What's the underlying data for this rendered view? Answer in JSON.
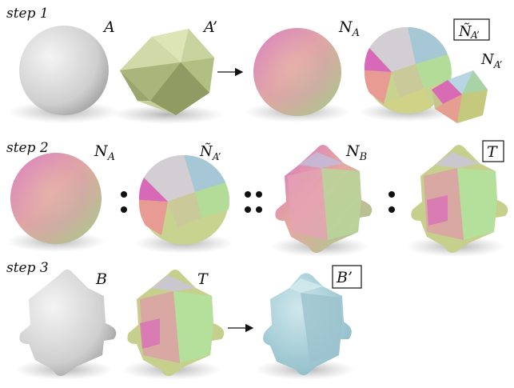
{
  "steps": [
    {
      "label": "step 1"
    },
    {
      "label": "step 2"
    },
    {
      "label": "step 3"
    }
  ],
  "labels": {
    "A": "A",
    "A_prime": "A’",
    "N_A": "N",
    "N_A_sub": "A",
    "N_A_tilde_sub": "A’",
    "N_A_prime_sub": "A’",
    "N_B_sub": "B",
    "T": "T",
    "B": "B",
    "B_prime": "B’"
  },
  "colors": {
    "sphere_gray": "#d6d6d6",
    "icosahedron": "#b9c58a",
    "result_blue": "#a9cdd6"
  }
}
